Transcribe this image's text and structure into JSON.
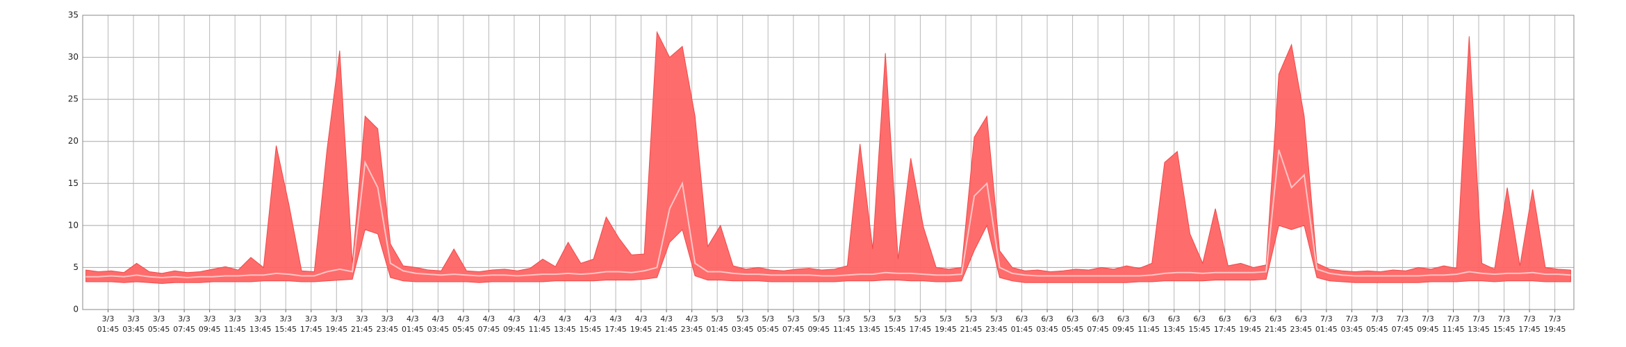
{
  "chart_data": {
    "type": "band",
    "x": [
      0,
      1,
      2,
      3,
      4,
      5,
      6,
      7,
      8,
      9,
      10,
      11,
      12,
      13,
      14,
      15,
      16,
      17,
      18,
      19,
      20,
      21,
      22,
      23,
      24,
      25,
      26,
      27,
      28,
      29,
      30,
      31,
      32,
      33,
      34,
      35,
      36,
      37,
      38,
      39,
      40,
      41,
      42,
      43,
      44,
      45,
      46,
      47,
      48,
      49,
      50,
      51,
      52,
      53,
      54,
      55,
      56,
      57,
      58,
      59,
      60,
      61,
      62,
      63,
      64,
      65,
      66,
      67,
      68,
      69,
      70,
      71,
      72,
      73,
      74,
      75,
      76,
      77,
      78,
      79,
      80,
      81,
      82,
      83,
      84,
      85,
      86,
      87,
      88,
      89,
      90,
      91,
      92,
      93,
      94,
      95,
      96,
      97,
      98,
      99,
      100,
      101,
      102,
      103,
      104,
      105,
      106,
      107,
      108,
      109,
      110,
      111,
      112,
      113,
      114,
      115,
      116,
      117
    ],
    "band": {
      "color": "#ff6464",
      "upper": [
        4.7,
        4.5,
        4.6,
        4.4,
        5.5,
        4.5,
        4.3,
        4.6,
        4.4,
        4.5,
        4.8,
        5.1,
        4.7,
        6.2,
        5.0,
        19.5,
        12.5,
        4.6,
        4.5,
        19.0,
        30.8,
        5.5,
        23.0,
        21.5,
        7.8,
        5.2,
        5.0,
        4.7,
        4.6,
        7.2,
        4.6,
        4.5,
        4.7,
        4.8,
        4.6,
        4.9,
        6.0,
        5.1,
        8.0,
        5.5,
        6.0,
        11.0,
        8.5,
        6.5,
        6.6,
        33.0,
        30.0,
        31.3,
        23.0,
        7.5,
        10.0,
        5.2,
        4.8,
        5.0,
        4.7,
        4.6,
        4.8,
        4.9,
        4.7,
        4.8,
        5.2,
        19.7,
        7.2,
        30.5,
        6.0,
        18.0,
        9.8,
        5.0,
        4.8,
        5.0,
        20.5,
        23.0,
        7.0,
        5.0,
        4.6,
        4.7,
        4.5,
        4.6,
        4.8,
        4.7,
        5.0,
        4.8,
        5.2,
        4.9,
        5.5,
        17.5,
        18.8,
        9.0,
        5.5,
        12.0,
        5.2,
        5.5,
        5.0,
        5.3,
        28.0,
        31.5,
        23.0,
        5.5,
        4.8,
        4.6,
        4.5,
        4.6,
        4.5,
        4.7,
        4.6,
        5.0,
        4.8,
        5.2,
        4.9,
        32.5,
        5.5,
        4.8,
        14.5,
        5.2,
        14.3,
        5.0,
        4.8,
        4.7
      ],
      "lower": [
        3.3,
        3.3,
        3.3,
        3.2,
        3.3,
        3.2,
        3.1,
        3.2,
        3.2,
        3.2,
        3.3,
        3.3,
        3.3,
        3.3,
        3.4,
        3.4,
        3.4,
        3.3,
        3.3,
        3.4,
        3.5,
        3.6,
        9.5,
        9.0,
        3.8,
        3.4,
        3.3,
        3.3,
        3.3,
        3.3,
        3.3,
        3.2,
        3.3,
        3.3,
        3.3,
        3.3,
        3.3,
        3.4,
        3.4,
        3.4,
        3.4,
        3.5,
        3.5,
        3.5,
        3.6,
        3.8,
        8.0,
        9.5,
        4.0,
        3.5,
        3.5,
        3.4,
        3.4,
        3.4,
        3.3,
        3.3,
        3.3,
        3.3,
        3.3,
        3.3,
        3.4,
        3.4,
        3.4,
        3.5,
        3.5,
        3.4,
        3.4,
        3.3,
        3.3,
        3.4,
        7.0,
        10.0,
        3.8,
        3.4,
        3.2,
        3.2,
        3.2,
        3.2,
        3.2,
        3.2,
        3.2,
        3.2,
        3.2,
        3.3,
        3.3,
        3.4,
        3.4,
        3.4,
        3.4,
        3.5,
        3.5,
        3.5,
        3.5,
        3.6,
        10.0,
        9.5,
        10.0,
        3.8,
        3.4,
        3.3,
        3.2,
        3.2,
        3.2,
        3.2,
        3.2,
        3.2,
        3.3,
        3.3,
        3.3,
        3.4,
        3.4,
        3.3,
        3.4,
        3.4,
        3.4,
        3.3,
        3.3,
        3.3
      ]
    },
    "line": {
      "color": "#ffc4c4",
      "values": [
        3.9,
        3.9,
        4.0,
        3.9,
        4.1,
        3.9,
        3.8,
        3.9,
        3.8,
        3.9,
        3.9,
        4.0,
        4.0,
        4.1,
        4.1,
        4.3,
        4.2,
        4.0,
        4.0,
        4.5,
        4.8,
        4.5,
        17.5,
        14.5,
        5.5,
        4.6,
        4.3,
        4.2,
        4.1,
        4.2,
        4.1,
        4.0,
        4.1,
        4.1,
        4.0,
        4.1,
        4.2,
        4.2,
        4.3,
        4.2,
        4.3,
        4.5,
        4.5,
        4.4,
        4.6,
        5.0,
        12.0,
        15.0,
        5.5,
        4.5,
        4.5,
        4.3,
        4.2,
        4.2,
        4.1,
        4.1,
        4.1,
        4.1,
        4.0,
        4.0,
        4.1,
        4.2,
        4.2,
        4.4,
        4.3,
        4.3,
        4.2,
        4.1,
        4.1,
        4.2,
        13.5,
        15.0,
        5.0,
        4.3,
        4.1,
        4.0,
        4.0,
        4.0,
        4.0,
        4.0,
        4.0,
        4.0,
        4.0,
        4.0,
        4.1,
        4.3,
        4.4,
        4.4,
        4.3,
        4.4,
        4.4,
        4.4,
        4.4,
        4.5,
        19.0,
        14.5,
        16.0,
        4.8,
        4.3,
        4.1,
        4.0,
        4.0,
        4.0,
        4.0,
        4.0,
        4.0,
        4.1,
        4.1,
        4.2,
        4.5,
        4.3,
        4.2,
        4.3,
        4.3,
        4.4,
        4.2,
        4.2,
        4.1
      ]
    },
    "xlim": [
      -0.25,
      117.25
    ],
    "xticks": [
      {
        "value": 1.75,
        "label": "3/3\n01:45"
      },
      {
        "value": 3.75,
        "label": "3/3\n03:45"
      },
      {
        "value": 5.75,
        "label": "3/3\n05:45"
      },
      {
        "value": 7.75,
        "label": "3/3\n07:45"
      },
      {
        "value": 9.75,
        "label": "3/3\n09:45"
      },
      {
        "value": 11.75,
        "label": "3/3\n11:45"
      },
      {
        "value": 13.75,
        "label": "3/3\n13:45"
      },
      {
        "value": 15.75,
        "label": "3/3\n15:45"
      },
      {
        "value": 17.75,
        "label": "3/3\n17:45"
      },
      {
        "value": 19.75,
        "label": "3/3\n19:45"
      },
      {
        "value": 21.75,
        "label": "3/3\n21:45"
      },
      {
        "value": 23.75,
        "label": "3/3\n23:45"
      },
      {
        "value": 25.75,
        "label": "4/3\n01:45"
      },
      {
        "value": 27.75,
        "label": "4/3\n03:45"
      },
      {
        "value": 29.75,
        "label": "4/3\n05:45"
      },
      {
        "value": 31.75,
        "label": "4/3\n07:45"
      },
      {
        "value": 33.75,
        "label": "4/3\n09:45"
      },
      {
        "value": 35.75,
        "label": "4/3\n11:45"
      },
      {
        "value": 37.75,
        "label": "4/3\n13:45"
      },
      {
        "value": 39.75,
        "label": "4/3\n15:45"
      },
      {
        "value": 41.75,
        "label": "4/3\n17:45"
      },
      {
        "value": 43.75,
        "label": "4/3\n19:45"
      },
      {
        "value": 45.75,
        "label": "4/3\n21:45"
      },
      {
        "value": 47.75,
        "label": "4/3\n23:45"
      },
      {
        "value": 49.75,
        "label": "5/3\n01:45"
      },
      {
        "value": 51.75,
        "label": "5/3\n03:45"
      },
      {
        "value": 53.75,
        "label": "5/3\n05:45"
      },
      {
        "value": 55.75,
        "label": "5/3\n07:45"
      },
      {
        "value": 57.75,
        "label": "5/3\n09:45"
      },
      {
        "value": 59.75,
        "label": "5/3\n11:45"
      },
      {
        "value": 61.75,
        "label": "5/3\n13:45"
      },
      {
        "value": 63.75,
        "label": "5/3\n15:45"
      },
      {
        "value": 65.75,
        "label": "5/3\n17:45"
      },
      {
        "value": 67.75,
        "label": "5/3\n19:45"
      },
      {
        "value": 69.75,
        "label": "5/3\n21:45"
      },
      {
        "value": 71.75,
        "label": "5/3\n23:45"
      },
      {
        "value": 73.75,
        "label": "6/3\n01:45"
      },
      {
        "value": 75.75,
        "label": "6/3\n03:45"
      },
      {
        "value": 77.75,
        "label": "6/3\n05:45"
      },
      {
        "value": 79.75,
        "label": "6/3\n07:45"
      },
      {
        "value": 81.75,
        "label": "6/3\n09:45"
      },
      {
        "value": 83.75,
        "label": "6/3\n11:45"
      },
      {
        "value": 85.75,
        "label": "6/3\n13:45"
      },
      {
        "value": 87.75,
        "label": "6/3\n15:45"
      },
      {
        "value": 89.75,
        "label": "6/3\n17:45"
      },
      {
        "value": 91.75,
        "label": "6/3\n19:45"
      },
      {
        "value": 93.75,
        "label": "6/3\n21:45"
      },
      {
        "value": 95.75,
        "label": "6/3\n23:45"
      },
      {
        "value": 97.75,
        "label": "7/3\n01:45"
      },
      {
        "value": 99.75,
        "label": "7/3\n03:45"
      },
      {
        "value": 101.75,
        "label": "7/3\n05:45"
      },
      {
        "value": 103.75,
        "label": "7/3\n07:45"
      },
      {
        "value": 105.75,
        "label": "7/3\n09:45"
      },
      {
        "value": 107.75,
        "label": "7/3\n11:45"
      },
      {
        "value": 109.75,
        "label": "7/3\n13:45"
      },
      {
        "value": 111.75,
        "label": "7/3\n15:45"
      },
      {
        "value": 113.75,
        "label": "7/3\n17:45"
      },
      {
        "value": 115.75,
        "label": "7/3\n19:45"
      }
    ],
    "ylim": [
      0,
      35
    ],
    "yticks": [
      0,
      5,
      10,
      15,
      20,
      25,
      30,
      35
    ],
    "grid": true
  }
}
